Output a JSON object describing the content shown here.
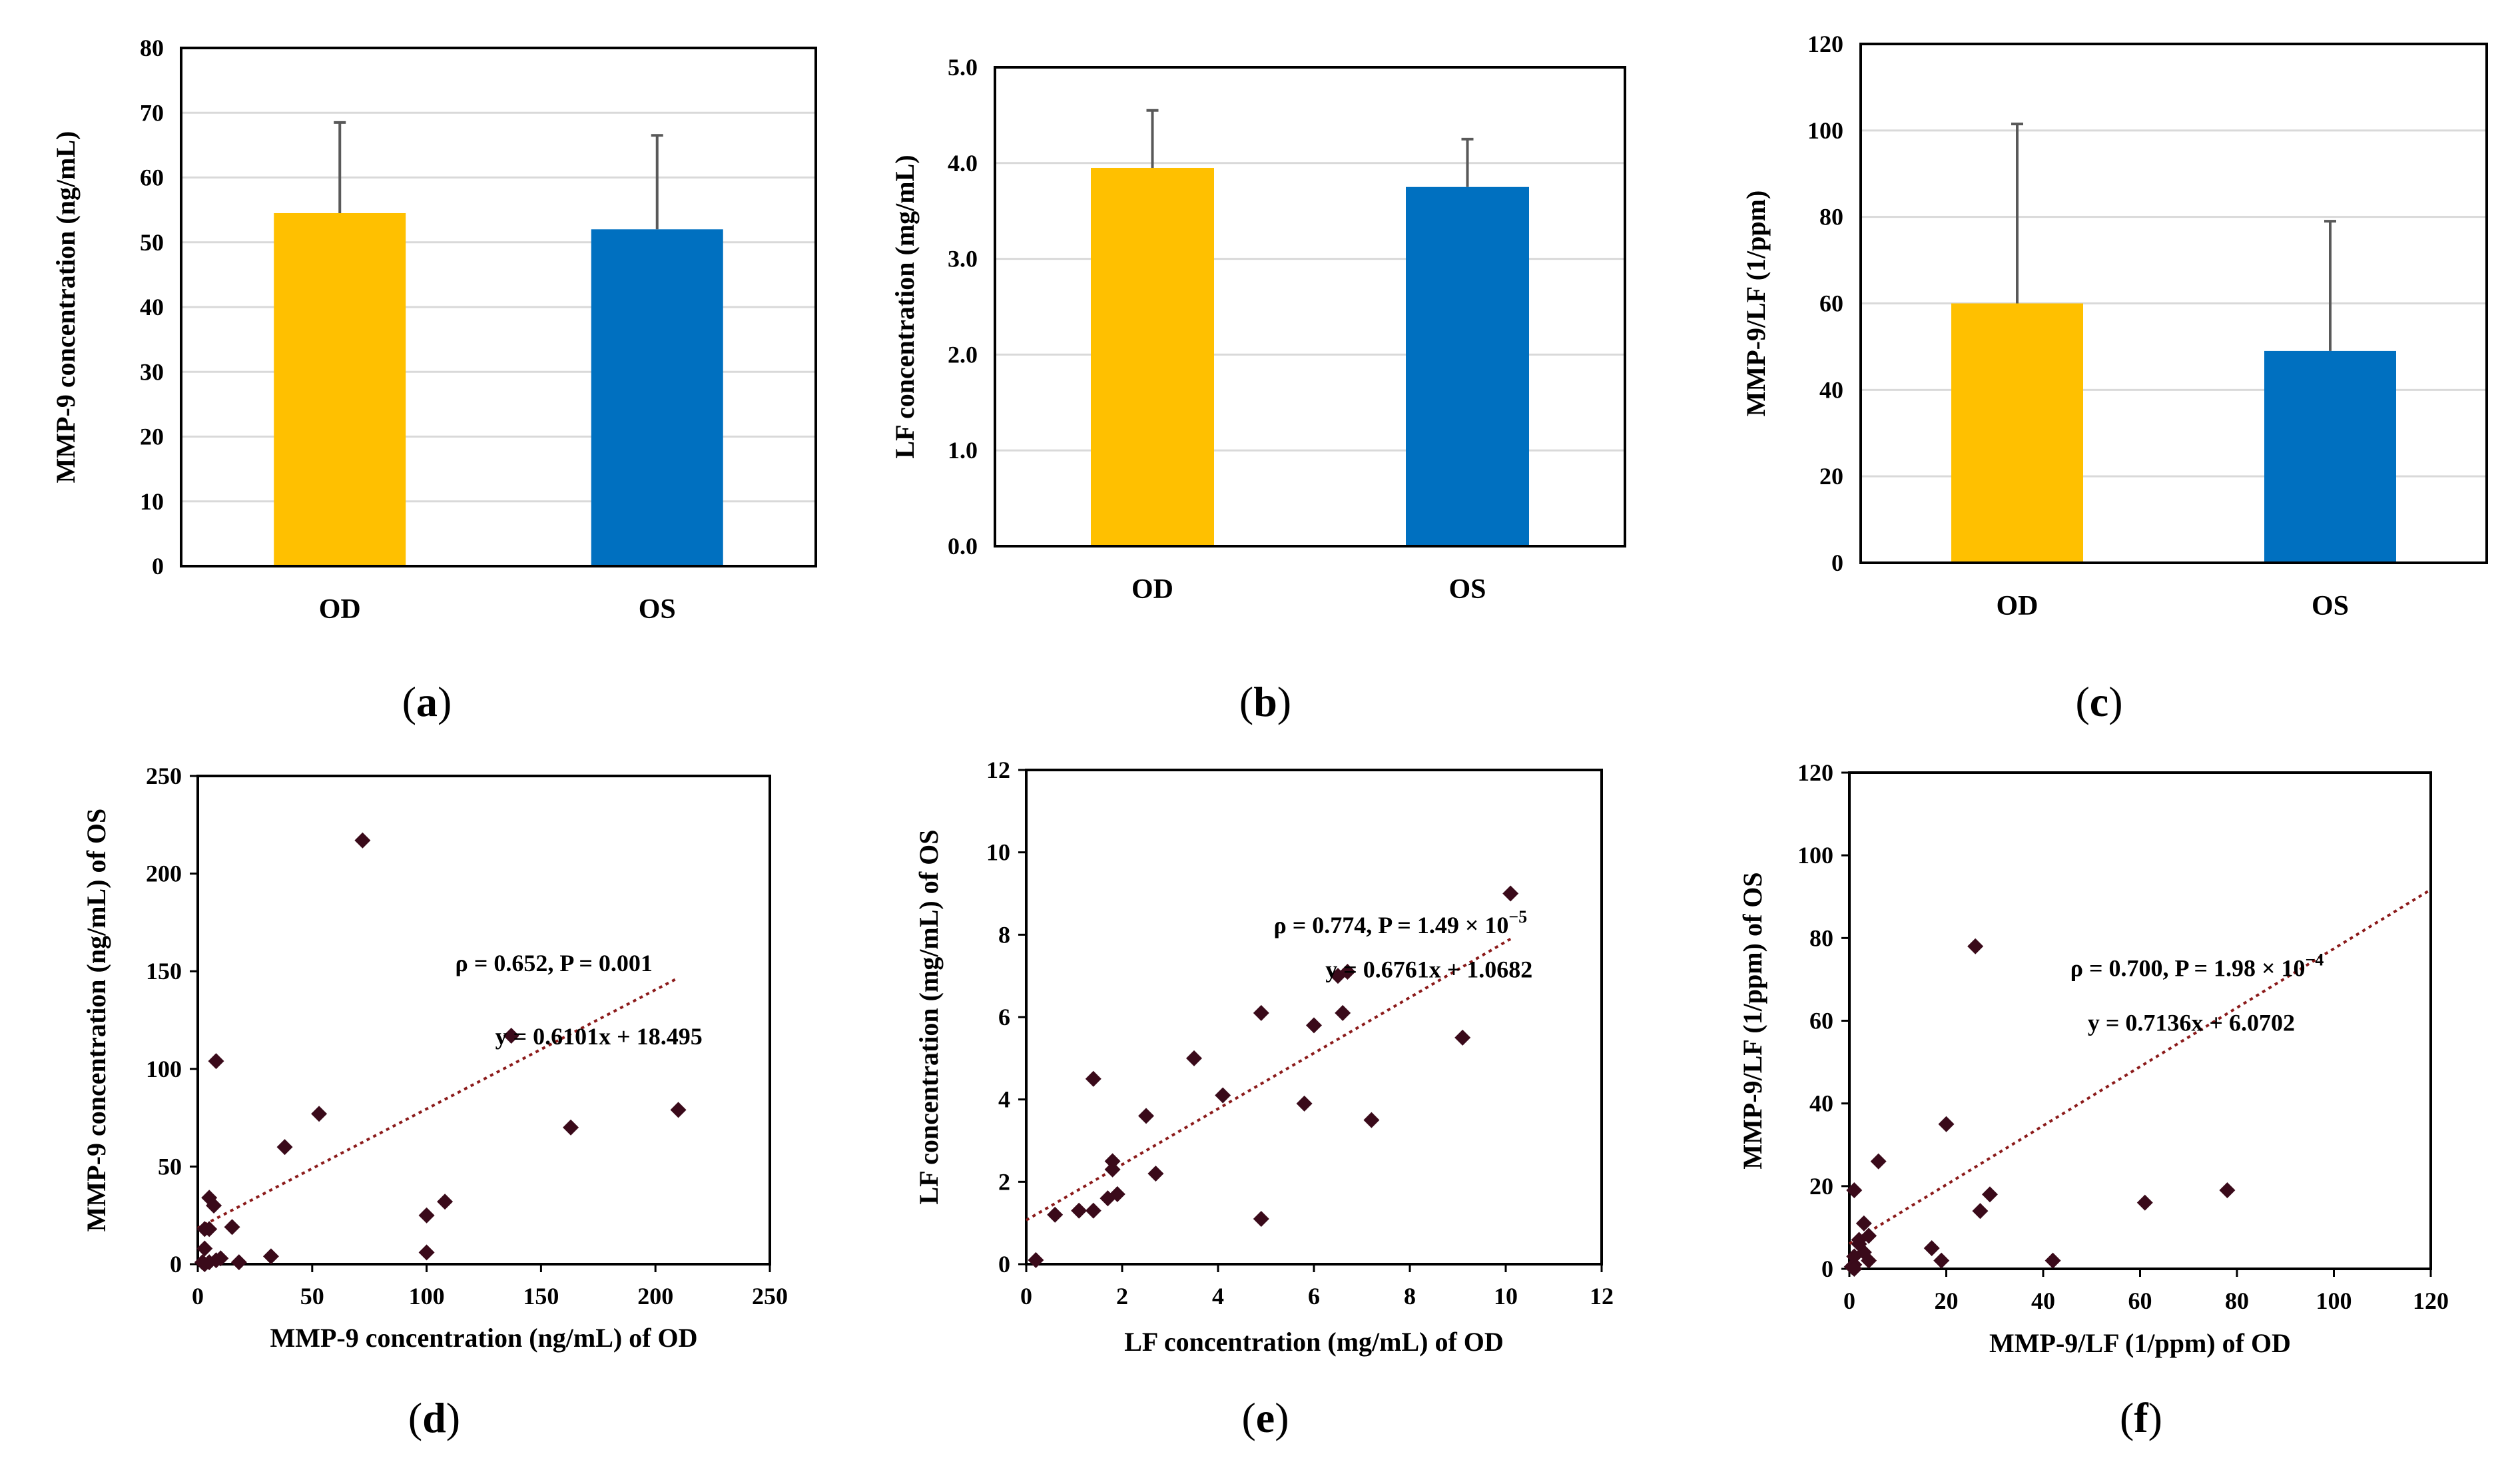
{
  "colors": {
    "od": "#FFC000",
    "os": "#0070C0",
    "error_bar": "#595959",
    "gridline": "#D9D9D9",
    "point": "#3a0a1a",
    "trendline": "#8B1A1A"
  },
  "chart_data": [
    {
      "id": "a",
      "panel_label": "a",
      "type": "bar",
      "categories": [
        "OD",
        "OS"
      ],
      "values": [
        54.5,
        52
      ],
      "errors": [
        14,
        14.5
      ],
      "ylabel": "MMP-9 concentration (ng/mL)",
      "xlabel": "",
      "ylim": [
        0,
        80
      ],
      "yticks": [
        0,
        10,
        20,
        30,
        40,
        50,
        60,
        70,
        80
      ],
      "ytick_labels": [
        "0",
        "10",
        "20",
        "30",
        "40",
        "50",
        "60",
        "70",
        "80"
      ],
      "grid": true
    },
    {
      "id": "b",
      "panel_label": "b",
      "type": "bar",
      "categories": [
        "OD",
        "OS"
      ],
      "values": [
        3.95,
        3.75
      ],
      "errors": [
        0.6,
        0.5
      ],
      "ylabel": "LF concentration (mg/mL)",
      "xlabel": "",
      "ylim": [
        0,
        5
      ],
      "yticks": [
        0,
        1,
        2,
        3,
        4,
        5
      ],
      "ytick_labels": [
        "0.0",
        "1.0",
        "2.0",
        "3.0",
        "4.0",
        "5.0"
      ],
      "grid": true
    },
    {
      "id": "c",
      "panel_label": "c",
      "type": "bar",
      "categories": [
        "OD",
        "OS"
      ],
      "values": [
        60,
        49
      ],
      "errors": [
        41.5,
        30
      ],
      "ylabel": "MMP-9/LF (1/ppm)",
      "xlabel": "",
      "ylim": [
        0,
        120
      ],
      "yticks": [
        0,
        20,
        40,
        60,
        80,
        100,
        120
      ],
      "ytick_labels": [
        "0",
        "20",
        "40",
        "60",
        "80",
        "100",
        "120"
      ],
      "grid": true
    },
    {
      "id": "d",
      "panel_label": "d",
      "type": "scatter",
      "xlabel": "MMP-9 concentration (ng/mL) of OD",
      "ylabel": "MMP-9 concentration (ng/mL) of OS",
      "xlim": [
        0,
        250
      ],
      "ylim": [
        0,
        250
      ],
      "xticks": [
        0,
        50,
        100,
        150,
        200,
        250
      ],
      "yticks": [
        0,
        50,
        100,
        150,
        200,
        250
      ],
      "x": [
        72,
        137,
        163,
        210,
        38,
        53,
        8,
        100,
        108,
        100,
        5,
        7,
        3,
        5,
        15,
        10,
        32,
        18,
        3,
        5,
        8,
        3,
        2
      ],
      "y": [
        217,
        117,
        70,
        79,
        60,
        77,
        104,
        25,
        32,
        6,
        34,
        30,
        18,
        18,
        19,
        3,
        4,
        1,
        8,
        1,
        2,
        0,
        1
      ],
      "trendline": {
        "slope": 0.6101,
        "intercept": 18.495,
        "x_range": [
          0,
          210
        ]
      },
      "annotation_stats": "ρ = 0.652, P =  0.001",
      "annotation_equation": "y = 0.6101x + 18.495",
      "grid": false
    },
    {
      "id": "e",
      "panel_label": "e",
      "type": "scatter",
      "xlabel": "LF concentration (mg/mL) of OD",
      "ylabel": "LF concentration (mg/mL) of OS",
      "xlim": [
        0,
        12
      ],
      "ylim": [
        0,
        12
      ],
      "xticks": [
        0,
        2,
        4,
        6,
        8,
        10,
        12
      ],
      "yticks": [
        0,
        2,
        4,
        6,
        8,
        10,
        12
      ],
      "x": [
        10.1,
        9.1,
        7.2,
        6.5,
        6.7,
        6.6,
        6.0,
        5.8,
        4.9,
        4.9,
        4.1,
        3.5,
        2.5,
        2.7,
        1.4,
        1.8,
        1.8,
        1.9,
        1.7,
        1.4,
        1.1,
        0.6,
        0.2
      ],
      "y": [
        9.0,
        5.5,
        3.5,
        7.0,
        7.1,
        6.1,
        5.8,
        3.9,
        6.1,
        1.1,
        4.1,
        5.0,
        3.6,
        2.2,
        4.5,
        2.5,
        2.3,
        1.7,
        1.6,
        1.3,
        1.3,
        1.2,
        0.1
      ],
      "trendline": {
        "slope": 0.6761,
        "intercept": 1.0682,
        "x_range": [
          0,
          10.1
        ]
      },
      "annotation_stats": "ρ = 0.774, P =  1.49 × 10",
      "annotation_exponent": "−5",
      "annotation_equation": "y = 0.6761x + 1.0682",
      "grid": false
    },
    {
      "id": "f",
      "panel_label": "f",
      "type": "scatter",
      "xlabel": "MMP-9/LF (1/ppm) of OD",
      "ylabel": "MMP-9/LF (1/ppm) of OS",
      "xlim": [
        0,
        120
      ],
      "ylim": [
        0,
        120
      ],
      "xticks": [
        0,
        20,
        40,
        60,
        80,
        100,
        120
      ],
      "yticks": [
        0,
        20,
        40,
        60,
        80,
        100,
        120
      ],
      "x": [
        26,
        20,
        6,
        78,
        61,
        29,
        27,
        17,
        19,
        42,
        1,
        3,
        2,
        4,
        3,
        4,
        2,
        1,
        1,
        0.5,
        1
      ],
      "y": [
        78,
        35,
        26,
        19,
        16,
        18,
        14,
        5,
        2,
        2,
        19,
        11,
        7,
        8,
        4,
        2,
        6,
        3,
        1,
        0.5,
        0
      ],
      "trendline": {
        "slope": 0.7136,
        "intercept": 6.0702,
        "x_range": [
          0,
          120
        ]
      },
      "annotation_stats": "ρ = 0.700, P =  1.98 × 10",
      "annotation_exponent": "−4",
      "annotation_equation": "y = 0.7136x + 6.0702",
      "grid": false
    }
  ]
}
